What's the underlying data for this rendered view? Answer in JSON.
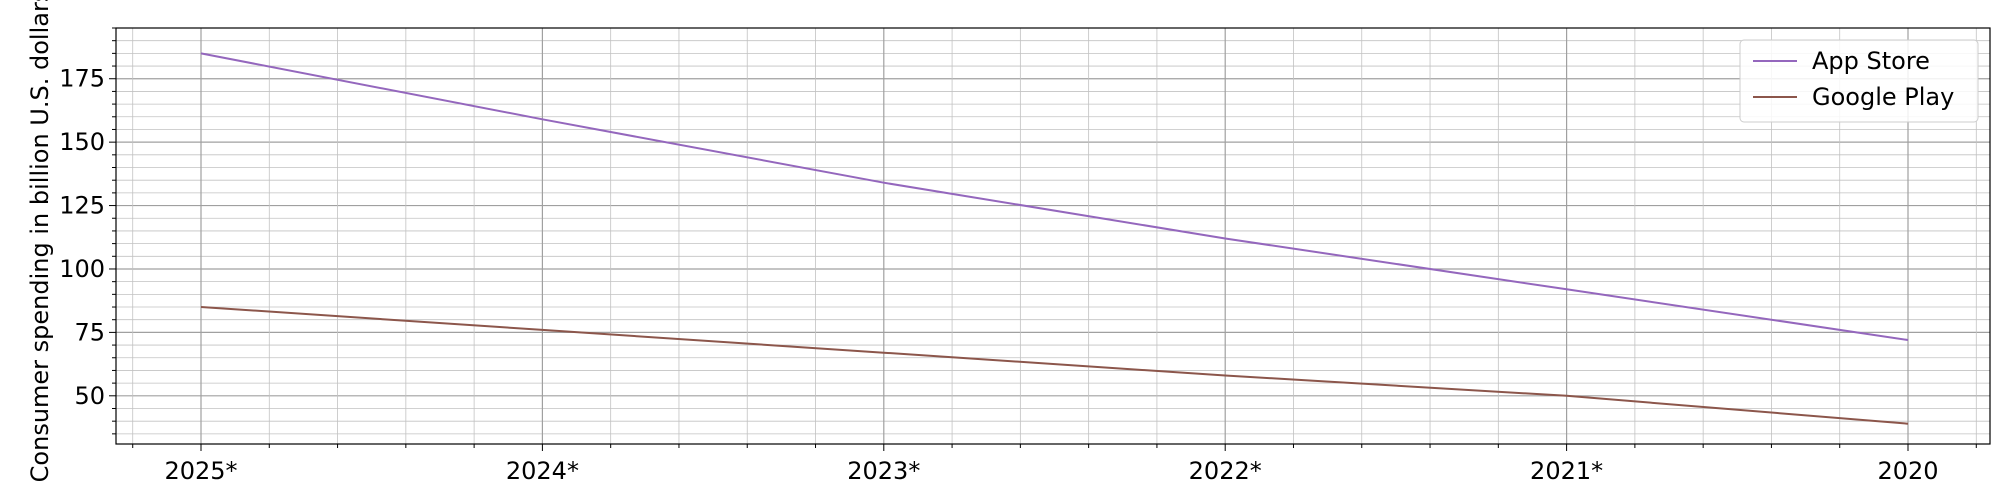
{
  "chart_data": {
    "type": "line",
    "title": "",
    "xlabel": "",
    "ylabel": "Consumer spending in billion U.S. dollars",
    "categories": [
      "2025*",
      "2024*",
      "2023*",
      "2022*",
      "2021*",
      "2020"
    ],
    "series": [
      {
        "name": "App Store",
        "color": "#9467bd",
        "values": [
          185,
          159,
          134,
          112,
          92,
          72
        ]
      },
      {
        "name": "Google Play",
        "color": "#8c564b",
        "values": [
          85,
          76,
          67,
          58,
          50,
          39
        ]
      }
    ],
    "ylim": [
      31,
      195
    ],
    "yticks": [
      "50",
      "75",
      "100",
      "125",
      "150",
      "175"
    ],
    "grid": true,
    "legend_position": "top-right"
  }
}
